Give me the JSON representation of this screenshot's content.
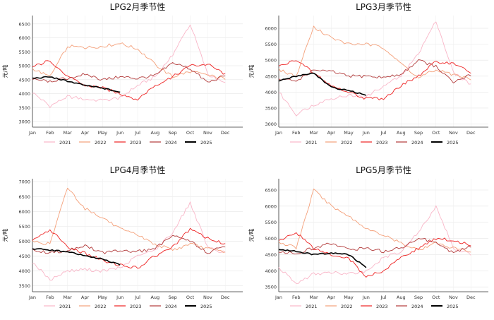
{
  "chart_data": [
    {
      "type": "line",
      "title": "LPG2月季节性",
      "ylabel": "元/吨",
      "xlabel": "",
      "ylim": [
        2800,
        6800
      ],
      "yticks": [
        3000,
        3500,
        4000,
        4500,
        5000,
        5500,
        6000,
        6500
      ],
      "categories": [
        "Jan",
        "Feb",
        "Mar",
        "Apr",
        "May",
        "Jun",
        "Jul",
        "Aug",
        "Sep",
        "Oct",
        "Nov",
        "Dec"
      ],
      "series": [
        {
          "name": "2021",
          "color": "#f9b6c8",
          "values": [
            4050,
            3550,
            3900,
            3800,
            3750,
            3850,
            4300,
            4600,
            5400,
            6500,
            4700,
            4350
          ]
        },
        {
          "name": "2022",
          "color": "#f4a07a",
          "values": [
            4900,
            4600,
            5700,
            5650,
            5700,
            5800,
            5600,
            5050,
            4600,
            4800,
            4650,
            4550
          ]
        },
        {
          "name": "2023",
          "color": "#ee2222",
          "values": [
            4950,
            5200,
            4600,
            4300,
            4200,
            4000,
            3800,
            4300,
            4600,
            5000,
            5050,
            4700
          ]
        },
        {
          "name": "2024",
          "color": "#b23a3a",
          "values": [
            4500,
            4450,
            4550,
            4700,
            4500,
            4600,
            4550,
            4650,
            5100,
            4900,
            4400,
            4650
          ]
        },
        {
          "name": "2025",
          "color": "#000000",
          "values": [
            4550,
            4600,
            4450,
            4300,
            4200,
            4050,
            null,
            null,
            null,
            null,
            null,
            null
          ]
        }
      ]
    },
    {
      "type": "line",
      "title": "LPG3月季节性",
      "ylabel": "元/吨",
      "xlabel": "",
      "ylim": [
        2900,
        6400
      ],
      "yticks": [
        3000,
        3500,
        4000,
        4500,
        5000,
        5500,
        6000
      ],
      "categories": [
        "Jan",
        "Feb",
        "Mar",
        "Apr",
        "May",
        "Jun",
        "Jul",
        "Aug",
        "Sep",
        "Oct",
        "Nov",
        "Dec"
      ],
      "series": [
        {
          "name": "2021",
          "color": "#f9b6c8",
          "values": [
            4000,
            3300,
            3600,
            3800,
            3900,
            3850,
            4200,
            4500,
            5200,
            6250,
            4600,
            4250
          ]
        },
        {
          "name": "2022",
          "color": "#f4a07a",
          "values": [
            4700,
            4500,
            6050,
            5700,
            5500,
            5500,
            5400,
            4900,
            4450,
            4700,
            4550,
            4400
          ]
        },
        {
          "name": "2023",
          "color": "#ee2222",
          "values": [
            4800,
            5000,
            4600,
            4200,
            4000,
            3800,
            3800,
            4200,
            4500,
            4950,
            4900,
            4600
          ]
        },
        {
          "name": "2024",
          "color": "#b23a3a",
          "values": [
            4400,
            4350,
            4700,
            4650,
            4500,
            4500,
            4450,
            4550,
            5000,
            4800,
            4300,
            4550
          ]
        },
        {
          "name": "2025",
          "color": "#000000",
          "values": [
            4350,
            4500,
            4600,
            4150,
            4050,
            3900,
            null,
            null,
            null,
            null,
            null,
            null
          ]
        }
      ]
    },
    {
      "type": "line",
      "title": "LPG4月季节性",
      "ylabel": "元/吨",
      "xlabel": "",
      "ylim": [
        3300,
        7100
      ],
      "yticks": [
        3500,
        4000,
        4500,
        5000,
        5500,
        6000,
        6500,
        7000
      ],
      "categories": [
        "Jan",
        "Feb",
        "Mar",
        "Apr",
        "May",
        "Jun",
        "Jul",
        "Aug",
        "Sep",
        "Oct",
        "Nov",
        "Dec"
      ],
      "series": [
        {
          "name": "2021",
          "color": "#f9b6c8",
          "values": [
            4300,
            3700,
            4000,
            4050,
            4000,
            4100,
            4500,
            4700,
            5300,
            6300,
            4800,
            4600
          ]
        },
        {
          "name": "2022",
          "color": "#f4a07a",
          "values": [
            5000,
            4900,
            6800,
            6100,
            5800,
            5400,
            5200,
            4900,
            4700,
            4900,
            4750,
            4650
          ]
        },
        {
          "name": "2023",
          "color": "#ee2222",
          "values": [
            5000,
            5400,
            4800,
            4600,
            4350,
            4200,
            4100,
            4500,
            4800,
            5400,
            5100,
            4900
          ]
        },
        {
          "name": "2024",
          "color": "#b23a3a",
          "values": [
            4700,
            4600,
            4700,
            4850,
            4600,
            4700,
            4650,
            4750,
            5200,
            5000,
            4600,
            4850
          ]
        },
        {
          "name": "2025",
          "color": "#000000",
          "values": [
            4750,
            4700,
            4650,
            4500,
            4400,
            4200,
            null,
            null,
            null,
            null,
            null,
            null
          ]
        }
      ]
    },
    {
      "type": "line",
      "title": "LPG5月季节性",
      "ylabel": "元/吨",
      "xlabel": "",
      "ylim": [
        3350,
        6850
      ],
      "yticks": [
        3500,
        4000,
        4500,
        5000,
        5500,
        6000,
        6500
      ],
      "categories": [
        "Jan",
        "Feb",
        "Mar",
        "Apr",
        "May",
        "Jun",
        "Jul",
        "Aug",
        "Sep",
        "Oct",
        "Nov",
        "Dec"
      ],
      "series": [
        {
          "name": "2021",
          "color": "#f9b6c8",
          "values": [
            4100,
            3600,
            3900,
            3950,
            3900,
            4000,
            4400,
            4600,
            5200,
            6000,
            4700,
            4500
          ]
        },
        {
          "name": "2022",
          "color": "#f4a07a",
          "values": [
            4900,
            4700,
            6500,
            6000,
            5700,
            5300,
            5100,
            4850,
            4650,
            4850,
            4700,
            4600
          ]
        },
        {
          "name": "2023",
          "color": "#ee2222",
          "values": [
            4900,
            5200,
            4700,
            4500,
            4400,
            3800,
            4000,
            4400,
            4700,
            5000,
            4950,
            4800
          ]
        },
        {
          "name": "2024",
          "color": "#b23a3a",
          "values": [
            4600,
            4550,
            4700,
            4850,
            4650,
            4700,
            4600,
            4700,
            5000,
            4900,
            4550,
            4750
          ]
        },
        {
          "name": "2025",
          "color": "#000000",
          "values": [
            4650,
            4600,
            4500,
            4550,
            4500,
            4100,
            null,
            null,
            null,
            null,
            null,
            null
          ]
        }
      ]
    }
  ]
}
